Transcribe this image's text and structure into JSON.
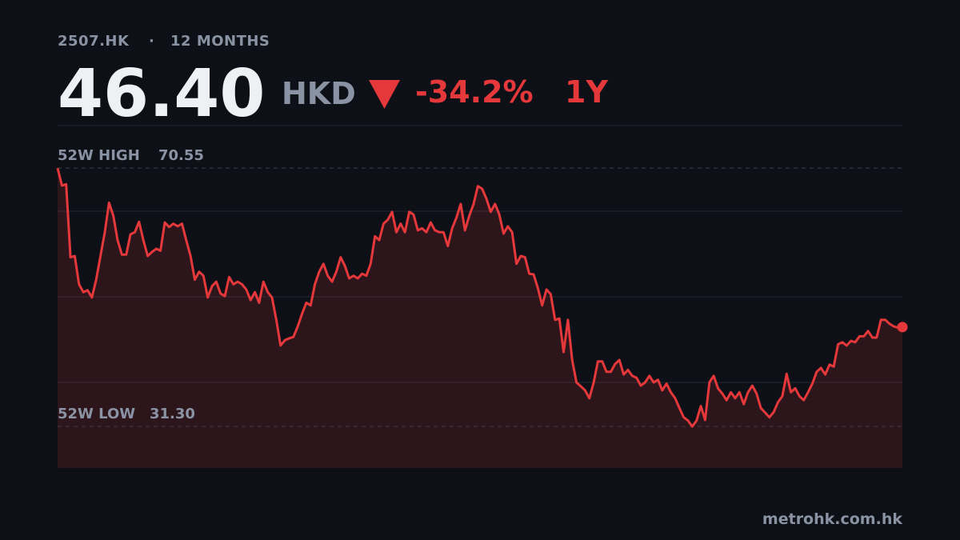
{
  "header": {
    "symbol": "2507.HK",
    "separator": "·",
    "period": "12 MONTHS",
    "price": "46.40",
    "currency": "HKD",
    "change": "-34.2%",
    "range": "1Y"
  },
  "chart_data": {
    "type": "line",
    "color": "#e5383b",
    "area_color": "rgba(229,56,59,0.15)",
    "grid": true,
    "ylim": [
      25,
      77
    ],
    "yticks": [
      38,
      51,
      64,
      77
    ],
    "high": {
      "label": "52W HIGH",
      "value": 70.55,
      "value_label": "70.55"
    },
    "low": {
      "label": "52W LOW",
      "value": 31.3,
      "value_label": "31.30"
    },
    "values": [
      70.55,
      67.9,
      68.1,
      57.0,
      57.2,
      52.9,
      51.7,
      52.0,
      50.9,
      53.6,
      57.2,
      60.8,
      65.3,
      63.3,
      59.6,
      57.4,
      57.4,
      60.5,
      60.8,
      62.4,
      59.6,
      57.2,
      57.8,
      58.3,
      58.0,
      62.3,
      61.6,
      62.1,
      61.7,
      62.1,
      59.6,
      57.2,
      53.6,
      54.8,
      54.2,
      50.9,
      52.6,
      53.3,
      51.5,
      51.1,
      54.0,
      52.9,
      53.3,
      52.9,
      52.1,
      50.5,
      51.7,
      50.1,
      53.3,
      51.7,
      50.9,
      47.5,
      43.6,
      44.4,
      44.7,
      44.9,
      46.5,
      48.4,
      50.1,
      49.7,
      52.9,
      54.8,
      56.0,
      54.2,
      53.3,
      54.8,
      57.0,
      55.7,
      53.8,
      54.2,
      53.8,
      54.5,
      54.2,
      56.0,
      60.2,
      59.6,
      62.1,
      62.7,
      63.9,
      60.8,
      62.1,
      60.8,
      63.9,
      63.5,
      61.1,
      61.4,
      60.8,
      62.3,
      61.1,
      60.8,
      60.8,
      58.7,
      61.4,
      63.0,
      65.1,
      61.1,
      63.3,
      65.1,
      67.8,
      67.4,
      65.9,
      63.9,
      65.1,
      63.5,
      60.6,
      61.7,
      60.8,
      56.0,
      57.2,
      57.0,
      54.5,
      54.4,
      52.3,
      49.7,
      52.1,
      51.4,
      47.5,
      47.7,
      42.6,
      47.5,
      41.4,
      38.0,
      37.4,
      36.8,
      35.6,
      38.0,
      41.2,
      41.2,
      39.6,
      39.6,
      40.8,
      41.4,
      39.2,
      39.9,
      39.0,
      38.7,
      37.5,
      38.0,
      39.0,
      38.0,
      38.4,
      36.8,
      37.8,
      36.5,
      35.6,
      34.1,
      32.7,
      32.2,
      31.3,
      32.2,
      34.4,
      32.3,
      38.0,
      39.0,
      37.1,
      36.3,
      35.3,
      36.5,
      35.6,
      36.5,
      34.7,
      36.5,
      37.5,
      36.3,
      34.1,
      33.4,
      32.7,
      33.5,
      35.0,
      35.9,
      39.3,
      36.5,
      37.1,
      35.9,
      35.3,
      36.5,
      37.8,
      39.6,
      40.2,
      39.2,
      40.7,
      40.4,
      43.8,
      44.1,
      43.6,
      44.3,
      44.1,
      45.0,
      45.0,
      45.8,
      44.8,
      44.8,
      47.5,
      47.5,
      46.9,
      46.5,
      46.3,
      46.4
    ]
  },
  "footer": {
    "source": "metrohk.com.hk"
  }
}
